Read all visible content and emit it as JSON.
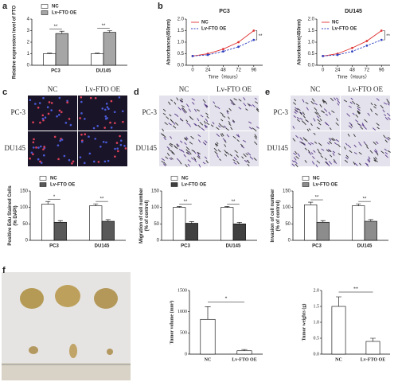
{
  "panel_letters": [
    "a",
    "b",
    "c",
    "d",
    "e",
    "f"
  ],
  "image_panels": [
    {
      "columns": [
        "NC",
        "Lv-FTO OE"
      ],
      "rows": [
        "PC-3",
        "DU145"
      ]
    },
    {
      "columns": [
        "NC",
        "Lv-FTO OE"
      ],
      "rows": [
        "PC-3",
        "DU145"
      ]
    },
    {
      "columns": [
        "NC",
        "Lv-FTO OE"
      ],
      "rows": [
        "PC-3",
        "DU145"
      ]
    }
  ],
  "chart_data": [
    {
      "type": "bar",
      "ylabel": [
        "Relative expression level of FTO"
      ],
      "categories": [
        "PC3",
        "DU145"
      ],
      "series": [
        {
          "name": "NC",
          "color": "#ffffff",
          "values": [
            1,
            1
          ],
          "errors": [
            0.05,
            0.05
          ]
        },
        {
          "name": "Lv-FTO OE",
          "color": "#a6a6a6",
          "values": [
            2.75,
            2.85
          ],
          "errors": [
            0.2,
            0.15
          ]
        }
      ],
      "ylim": [
        0,
        4
      ],
      "yticks": [
        0,
        1,
        2,
        3,
        4
      ],
      "annotations": [
        "**",
        "**"
      ],
      "legend": "above"
    },
    {
      "type": "line",
      "title": "PC3",
      "xlabel": "Time（Hours）",
      "ylabel": [
        "Absorbance(450nm)"
      ],
      "x": [
        0,
        24,
        48,
        72,
        96
      ],
      "xlim": [
        -10,
        110
      ],
      "xticks": [
        0,
        24,
        48,
        72,
        96
      ],
      "series": [
        {
          "name": "NC",
          "color": "#e03030",
          "dashed": false,
          "values": [
            0.4,
            0.5,
            0.7,
            1.0,
            1.5
          ]
        },
        {
          "name": "Lv-FTO OE",
          "color": "#2f3fc0",
          "dashed": true,
          "values": [
            0.4,
            0.45,
            0.6,
            0.8,
            1.1
          ]
        }
      ],
      "ylim": [
        0,
        2
      ],
      "yticks": [
        {
          "value": 0,
          "label": "0.0"
        },
        {
          "value": 0.5,
          "label": "0.5"
        },
        {
          "value": 1,
          "label": "1.0"
        },
        {
          "value": 1.5,
          "label": "1.5"
        },
        {
          "value": 2,
          "label": "2.0"
        }
      ],
      "annotations": [
        "**"
      ],
      "legend": "upper left"
    },
    {
      "type": "line",
      "title": "DU145",
      "xlabel": "Time（Hours）",
      "ylabel": [
        "Absorbance(450nm)"
      ],
      "x": [
        0,
        24,
        48,
        72,
        96
      ],
      "xlim": [
        -10,
        110
      ],
      "xticks": [
        0,
        24,
        48,
        72,
        96
      ],
      "series": [
        {
          "name": "NC",
          "color": "#e03030",
          "dashed": false,
          "values": [
            0.4,
            0.5,
            0.75,
            1.05,
            1.5
          ]
        },
        {
          "name": "Lv-FTO OE",
          "color": "#2f3fc0",
          "dashed": true,
          "values": [
            0.4,
            0.45,
            0.6,
            0.85,
            1.1
          ]
        }
      ],
      "ylim": [
        0,
        2
      ],
      "yticks": [
        {
          "value": 0,
          "label": "0.0"
        },
        {
          "value": 0.5,
          "label": "0.5"
        },
        {
          "value": 1,
          "label": "1.0"
        },
        {
          "value": 1.5,
          "label": "1.5"
        },
        {
          "value": 2,
          "label": "2.0"
        }
      ],
      "annotations": [
        "**"
      ],
      "legend": "upper left"
    },
    {
      "type": "bar",
      "ylabel": [
        "Positive Edu Stained Cells",
        "(% DAPI)"
      ],
      "categories": [
        "PC3",
        "DU145"
      ],
      "series": [
        {
          "name": "NC",
          "color": "#ffffff",
          "values": [
            110,
            105
          ],
          "errors": [
            8,
            6
          ]
        },
        {
          "name": "Lv-FTO OE",
          "color": "#595959",
          "values": [
            55,
            58
          ],
          "errors": [
            5,
            5
          ]
        }
      ],
      "ylim": [
        0,
        150
      ],
      "yticks": [
        0,
        50,
        100,
        150
      ],
      "annotations": [
        "*",
        "**"
      ],
      "legend": "above"
    },
    {
      "type": "bar",
      "ylabel": [
        "Migration of cell number",
        "(% of control)"
      ],
      "categories": [
        "PC3",
        "DU145"
      ],
      "series": [
        {
          "name": "NC",
          "color": "#ffffff",
          "values": [
            100,
            100
          ],
          "errors": [
            3,
            3
          ]
        },
        {
          "name": "Lv-FTO OE",
          "color": "#404040",
          "values": [
            52,
            50
          ],
          "errors": [
            5,
            5
          ]
        }
      ],
      "ylim": [
        0,
        150
      ],
      "yticks": [
        0,
        50,
        100,
        150
      ],
      "annotations": [
        "**",
        "**"
      ],
      "legend": "above"
    },
    {
      "type": "bar",
      "ylabel": [
        "Invasion of cell number",
        "(% of control)"
      ],
      "categories": [
        "PC3",
        "DU145"
      ],
      "series": [
        {
          "name": "NC",
          "color": "#ffffff",
          "values": [
            108,
            105
          ],
          "errors": [
            8,
            6
          ]
        },
        {
          "name": "Lv-FTO OE",
          "color": "#8c8c8c",
          "values": [
            55,
            58
          ],
          "errors": [
            5,
            5
          ]
        }
      ],
      "ylim": [
        0,
        150
      ],
      "yticks": [
        0,
        50,
        100,
        150
      ],
      "annotations": [
        "**",
        "**"
      ],
      "legend": "above"
    },
    {
      "type": "bar",
      "ylabel": [
        "Tumor volume (mm³)"
      ],
      "categories": [
        "NC",
        "Lv-FTO OE"
      ],
      "values": [
        820,
        80
      ],
      "errors": [
        300,
        30
      ],
      "color": "#ffffff",
      "ylim": [
        0,
        1500
      ],
      "yticks": [
        0,
        500,
        1000,
        1500
      ],
      "annotations": [
        "*"
      ]
    },
    {
      "type": "bar",
      "ylabel": [
        "Tumor weights (g)"
      ],
      "categories": [
        "NC",
        "Lv-FTO OE"
      ],
      "values": [
        1.5,
        0.4
      ],
      "errors": [
        0.3,
        0.1
      ],
      "color": "#ffffff",
      "ylim": [
        0,
        2
      ],
      "yticks": [
        {
          "value": 0,
          "label": "0.0"
        },
        {
          "value": 0.5,
          "label": "0.5"
        },
        {
          "value": 1,
          "label": "1.0"
        },
        {
          "value": 1.5,
          "label": "1.5"
        },
        {
          "value": 2,
          "label": "2.0"
        }
      ],
      "annotations": [
        "**"
      ]
    }
  ]
}
